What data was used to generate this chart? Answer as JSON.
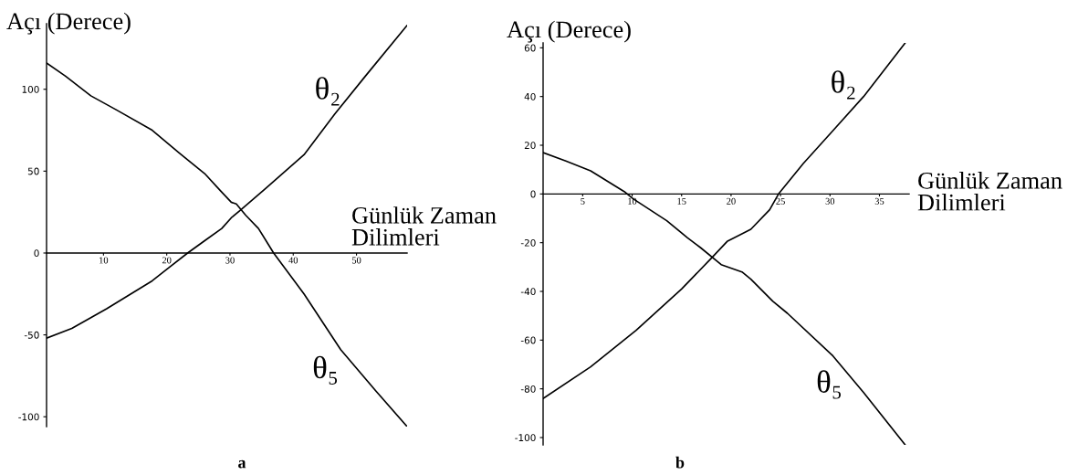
{
  "chart_data": [
    {
      "type": "line",
      "ylabel": "Açı (Derece)",
      "xlabel": "Günlük Zaman\nDilimleri",
      "xlim": [
        1,
        58
      ],
      "ylim": [
        -106,
        140
      ],
      "xticks": [
        10,
        20,
        30,
        40,
        50
      ],
      "yticks": [
        -100,
        -50,
        0,
        50,
        100
      ],
      "grid": false,
      "legend": false,
      "series": [
        {
          "name": "θ₂",
          "color": "#000000",
          "x": [
            1,
            5,
            10.5,
            17.7,
            20.5,
            23.3,
            26,
            28.7,
            30.2,
            31.6,
            35.5,
            41.7,
            46.6,
            51.4,
            58
          ],
          "values": [
            -52,
            -46,
            -34,
            -17,
            -8.5,
            0,
            7.5,
            15,
            21.5,
            26,
            39,
            60,
            85,
            108,
            139
          ]
        },
        {
          "name": "θ₅",
          "color": "#000000",
          "x": [
            1,
            4,
            8,
            12,
            17.7,
            22,
            26,
            28.5,
            30.2,
            31,
            32.5,
            34.5,
            36.9,
            41.7,
            47.5,
            53,
            58
          ],
          "values": [
            116,
            108,
            96,
            87.5,
            75,
            61,
            48.5,
            38,
            31,
            30,
            23,
            15,
            0,
            -25,
            -59,
            -84,
            -106
          ]
        }
      ],
      "annotations": [
        "a"
      ]
    },
    {
      "type": "line",
      "ylabel": "Açı (Derece)",
      "xlabel": "Günlük Zaman\nDilimleri",
      "xlim": [
        1,
        38
      ],
      "ylim": [
        -103,
        62
      ],
      "xticks": [
        5,
        10,
        15,
        20,
        25,
        30,
        35
      ],
      "yticks": [
        -100,
        -80,
        -60,
        -40,
        -20,
        0,
        20,
        40,
        60
      ],
      "grid": false,
      "legend": false,
      "series": [
        {
          "name": "θ₂",
          "color": "#000000",
          "x": [
            1,
            5.8,
            10.4,
            15,
            18.1,
            19.6,
            22,
            23.9,
            24.8,
            27.3,
            30.3,
            33.4,
            37.6
          ],
          "values": [
            -84,
            -71,
            -56,
            -39,
            -26,
            -19.5,
            -14.5,
            -6.5,
            0,
            12.5,
            26,
            40,
            62
          ]
        },
        {
          "name": "θ₅",
          "color": "#000000",
          "x": [
            1,
            3.3,
            5.8,
            9.2,
            10.1,
            13.5,
            15.6,
            16.9,
            19,
            21.1,
            22,
            24.2,
            25.7,
            30.3,
            33.4,
            37.6
          ],
          "values": [
            17,
            13.5,
            9.5,
            1,
            -2,
            -11,
            -18,
            -22,
            -29,
            -32,
            -35,
            -44,
            -49,
            -66.5,
            -81.5,
            -103
          ]
        }
      ],
      "annotations": [
        "b"
      ]
    }
  ]
}
